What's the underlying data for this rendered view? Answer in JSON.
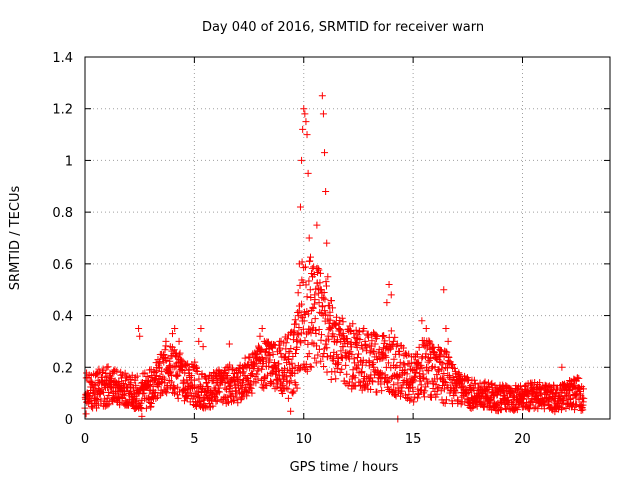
{
  "chart_data": {
    "type": "scatter",
    "title": "Day 040 of 2016, SRMTID for receiver warn",
    "xlabel": "GPS time / hours",
    "ylabel": "SRMTID / TECUs",
    "xlim": [
      0,
      24
    ],
    "ylim": [
      0,
      1.4
    ],
    "xticks": [
      0,
      5,
      10,
      15,
      20
    ],
    "xtick_labels": [
      "0",
      "5",
      "10",
      "15",
      "20"
    ],
    "yticks": [
      0,
      0.2,
      0.4,
      0.6,
      0.8,
      1.0,
      1.2,
      1.4
    ],
    "ytick_labels": [
      "0",
      "0.2",
      "0.4",
      "0.6",
      "0.8",
      "1",
      "1.2",
      "1.4"
    ],
    "grid": true,
    "marker": "plus",
    "color": "#ff0000",
    "series": [
      {
        "name": "SRMTID",
        "points": [
          [
            0.05,
            0.02
          ],
          [
            0.1,
            0.1
          ],
          [
            0.2,
            0.08
          ],
          [
            0.3,
            0.14
          ],
          [
            0.4,
            0.12
          ],
          [
            0.5,
            0.06
          ],
          [
            0.6,
            0.15
          ],
          [
            0.7,
            0.1
          ],
          [
            0.8,
            0.18
          ],
          [
            0.9,
            0.13
          ],
          [
            1.0,
            0.2
          ],
          [
            1.1,
            0.16
          ],
          [
            1.2,
            0.12
          ],
          [
            1.3,
            0.14
          ],
          [
            1.4,
            0.1
          ],
          [
            1.5,
            0.08
          ],
          [
            1.6,
            0.13
          ],
          [
            1.7,
            0.11
          ],
          [
            1.8,
            0.09
          ],
          [
            1.9,
            0.12
          ],
          [
            2.0,
            0.1
          ],
          [
            2.1,
            0.14
          ],
          [
            2.2,
            0.12
          ],
          [
            2.3,
            0.16
          ],
          [
            2.45,
            0.35
          ],
          [
            2.5,
            0.32
          ],
          [
            2.6,
            0.01
          ],
          [
            2.7,
            0.1
          ],
          [
            2.8,
            0.08
          ],
          [
            2.9,
            0.13
          ],
          [
            3.0,
            0.11
          ],
          [
            3.1,
            0.15
          ],
          [
            3.2,
            0.18
          ],
          [
            3.3,
            0.14
          ],
          [
            3.4,
            0.2
          ],
          [
            3.5,
            0.25
          ],
          [
            3.6,
            0.22
          ],
          [
            3.7,
            0.3
          ],
          [
            3.8,
            0.18
          ],
          [
            3.9,
            0.28
          ],
          [
            4.0,
            0.33
          ],
          [
            4.1,
            0.35
          ],
          [
            4.2,
            0.24
          ],
          [
            4.3,
            0.3
          ],
          [
            4.4,
            0.2
          ],
          [
            4.5,
            0.15
          ],
          [
            4.6,
            0.12
          ],
          [
            4.7,
            0.09
          ],
          [
            4.8,
            0.1
          ],
          [
            4.9,
            0.13
          ],
          [
            5.0,
            0.15
          ],
          [
            5.1,
            0.2
          ],
          [
            5.2,
            0.3
          ],
          [
            5.3,
            0.35
          ],
          [
            5.4,
            0.28
          ],
          [
            5.5,
            0.05
          ],
          [
            5.6,
            0.08
          ],
          [
            5.7,
            0.06
          ],
          [
            5.8,
            0.1
          ],
          [
            5.9,
            0.12
          ],
          [
            6.0,
            0.1
          ],
          [
            6.2,
            0.14
          ],
          [
            6.4,
            0.12
          ],
          [
            6.6,
            0.29
          ],
          [
            6.8,
            0.16
          ],
          [
            7.0,
            0.18
          ],
          [
            7.2,
            0.14
          ],
          [
            7.4,
            0.2
          ],
          [
            7.6,
            0.22
          ],
          [
            7.8,
            0.25
          ],
          [
            8.0,
            0.32
          ],
          [
            8.1,
            0.35
          ],
          [
            8.2,
            0.3
          ],
          [
            8.3,
            0.27
          ],
          [
            8.4,
            0.22
          ],
          [
            8.5,
            0.28
          ],
          [
            8.6,
            0.25
          ],
          [
            8.7,
            0.2
          ],
          [
            8.8,
            0.26
          ],
          [
            8.9,
            0.3
          ],
          [
            9.0,
            0.24
          ],
          [
            9.1,
            0.18
          ],
          [
            9.2,
            0.12
          ],
          [
            9.3,
            0.08
          ],
          [
            9.4,
            0.03
          ],
          [
            9.5,
            0.1
          ],
          [
            9.6,
            0.2
          ],
          [
            9.7,
            0.3
          ],
          [
            9.75,
            0.4
          ],
          [
            9.8,
            0.6
          ],
          [
            9.85,
            0.82
          ],
          [
            9.9,
            1.0
          ],
          [
            9.95,
            1.12
          ],
          [
            10.0,
            1.2
          ],
          [
            10.05,
            1.18
          ],
          [
            10.1,
            1.15
          ],
          [
            10.15,
            1.1
          ],
          [
            10.2,
            0.95
          ],
          [
            10.25,
            0.7
          ],
          [
            10.3,
            0.5
          ],
          [
            10.35,
            0.42
          ],
          [
            10.4,
            0.55
          ],
          [
            10.5,
            0.48
          ],
          [
            10.6,
            0.75
          ],
          [
            10.7,
            0.45
          ],
          [
            10.8,
            0.5
          ],
          [
            10.85,
            1.25
          ],
          [
            10.9,
            1.18
          ],
          [
            10.95,
            1.03
          ],
          [
            11.0,
            0.88
          ],
          [
            11.05,
            0.68
          ],
          [
            11.1,
            0.55
          ],
          [
            11.2,
            0.4
          ],
          [
            11.3,
            0.32
          ],
          [
            11.4,
            0.3
          ],
          [
            11.5,
            0.25
          ],
          [
            11.6,
            0.35
          ],
          [
            11.8,
            0.28
          ],
          [
            12.0,
            0.3
          ],
          [
            12.2,
            0.25
          ],
          [
            12.4,
            0.2
          ],
          [
            12.6,
            0.22
          ],
          [
            12.8,
            0.3
          ],
          [
            13.0,
            0.22
          ],
          [
            13.2,
            0.2
          ],
          [
            13.4,
            0.18
          ],
          [
            13.6,
            0.25
          ],
          [
            13.8,
            0.45
          ],
          [
            13.9,
            0.52
          ],
          [
            14.0,
            0.48
          ],
          [
            14.1,
            0.3
          ],
          [
            14.2,
            0.25
          ],
          [
            14.3,
            0.0
          ],
          [
            14.4,
            0.2
          ],
          [
            14.6,
            0.18
          ],
          [
            14.8,
            0.12
          ],
          [
            15.0,
            0.15
          ],
          [
            15.2,
            0.25
          ],
          [
            15.4,
            0.38
          ],
          [
            15.6,
            0.35
          ],
          [
            15.8,
            0.25
          ],
          [
            16.0,
            0.2
          ],
          [
            16.2,
            0.25
          ],
          [
            16.4,
            0.5
          ],
          [
            16.5,
            0.35
          ],
          [
            16.6,
            0.3
          ],
          [
            16.8,
            0.2
          ],
          [
            17.0,
            0.15
          ],
          [
            17.2,
            0.12
          ],
          [
            17.4,
            0.1
          ],
          [
            17.6,
            0.12
          ],
          [
            17.8,
            0.15
          ],
          [
            18.0,
            0.12
          ],
          [
            18.2,
            0.1
          ],
          [
            18.4,
            0.08
          ],
          [
            18.6,
            0.1
          ],
          [
            18.8,
            0.12
          ],
          [
            19.0,
            0.1
          ],
          [
            19.2,
            0.08
          ],
          [
            19.4,
            0.1
          ],
          [
            19.6,
            0.09
          ],
          [
            19.8,
            0.1
          ],
          [
            20.0,
            0.08
          ],
          [
            20.2,
            0.1
          ],
          [
            20.4,
            0.12
          ],
          [
            20.6,
            0.08
          ],
          [
            20.8,
            0.1
          ],
          [
            21.0,
            0.12
          ],
          [
            21.2,
            0.08
          ],
          [
            21.4,
            0.1
          ],
          [
            21.6,
            0.12
          ],
          [
            21.8,
            0.2
          ],
          [
            22.0,
            0.1
          ],
          [
            22.2,
            0.08
          ],
          [
            22.4,
            0.15
          ],
          [
            22.6,
            0.12
          ],
          [
            22.8,
            0.08
          ]
        ],
        "dense_profile": [
          [
            0.0,
            0.12,
            0.06
          ],
          [
            0.5,
            0.11,
            0.06
          ],
          [
            1.0,
            0.13,
            0.06
          ],
          [
            1.5,
            0.12,
            0.05
          ],
          [
            2.0,
            0.11,
            0.05
          ],
          [
            2.5,
            0.1,
            0.05
          ],
          [
            3.0,
            0.12,
            0.06
          ],
          [
            3.5,
            0.18,
            0.07
          ],
          [
            4.0,
            0.2,
            0.08
          ],
          [
            4.5,
            0.15,
            0.07
          ],
          [
            5.0,
            0.14,
            0.07
          ],
          [
            5.5,
            0.1,
            0.05
          ],
          [
            6.0,
            0.12,
            0.05
          ],
          [
            6.5,
            0.13,
            0.06
          ],
          [
            7.0,
            0.14,
            0.06
          ],
          [
            7.5,
            0.17,
            0.06
          ],
          [
            8.0,
            0.2,
            0.07
          ],
          [
            8.5,
            0.22,
            0.07
          ],
          [
            9.0,
            0.2,
            0.08
          ],
          [
            9.5,
            0.22,
            0.1
          ],
          [
            10.0,
            0.4,
            0.2
          ],
          [
            10.5,
            0.42,
            0.15
          ],
          [
            11.0,
            0.35,
            0.15
          ],
          [
            11.5,
            0.28,
            0.1
          ],
          [
            12.0,
            0.25,
            0.1
          ],
          [
            12.5,
            0.24,
            0.1
          ],
          [
            13.0,
            0.22,
            0.09
          ],
          [
            13.5,
            0.22,
            0.09
          ],
          [
            14.0,
            0.22,
            0.1
          ],
          [
            14.5,
            0.18,
            0.08
          ],
          [
            15.0,
            0.15,
            0.07
          ],
          [
            15.5,
            0.2,
            0.09
          ],
          [
            16.0,
            0.18,
            0.08
          ],
          [
            16.5,
            0.16,
            0.08
          ],
          [
            17.0,
            0.12,
            0.05
          ],
          [
            17.5,
            0.1,
            0.05
          ],
          [
            18.0,
            0.1,
            0.04
          ],
          [
            18.5,
            0.09,
            0.04
          ],
          [
            19.0,
            0.08,
            0.04
          ],
          [
            19.5,
            0.08,
            0.04
          ],
          [
            20.0,
            0.08,
            0.04
          ],
          [
            20.5,
            0.09,
            0.04
          ],
          [
            21.0,
            0.09,
            0.04
          ],
          [
            21.5,
            0.08,
            0.04
          ],
          [
            22.0,
            0.09,
            0.04
          ],
          [
            22.5,
            0.1,
            0.05
          ],
          [
            22.8,
            0.08,
            0.04
          ]
        ]
      }
    ]
  }
}
